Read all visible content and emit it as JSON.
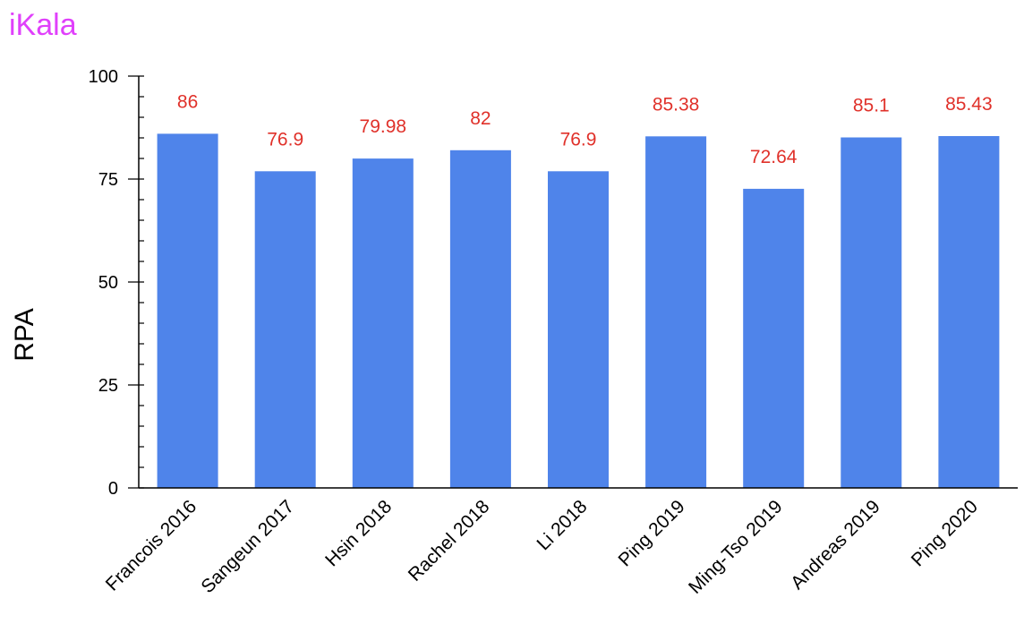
{
  "chart_data": {
    "type": "bar",
    "title": "iKala",
    "xlabel": "",
    "ylabel": "RPA",
    "ylim": [
      0,
      100
    ],
    "yticks": [
      0,
      25,
      50,
      75,
      100
    ],
    "minor_tick_step": 5,
    "grid": false,
    "legend": "none",
    "categories": [
      "Francois 2016",
      "Sangeun 2017",
      "Hsin 2018",
      "Rachel 2018",
      "Li 2018",
      "Ping 2019",
      "Ming-Tso 2019",
      "Andreas 2019",
      "Ping 2020"
    ],
    "values": [
      86,
      76.9,
      79.98,
      82,
      76.9,
      85.38,
      72.64,
      85.1,
      85.43
    ],
    "data_labels": [
      "86",
      "76.9",
      "79.98",
      "82",
      "76.9",
      "85.38",
      "72.64",
      "85.1",
      "85.43"
    ]
  },
  "colors": {
    "bar": "#4F84EA",
    "data_label": "#E0312A",
    "title": "#E040FB",
    "axis": "#000000"
  }
}
